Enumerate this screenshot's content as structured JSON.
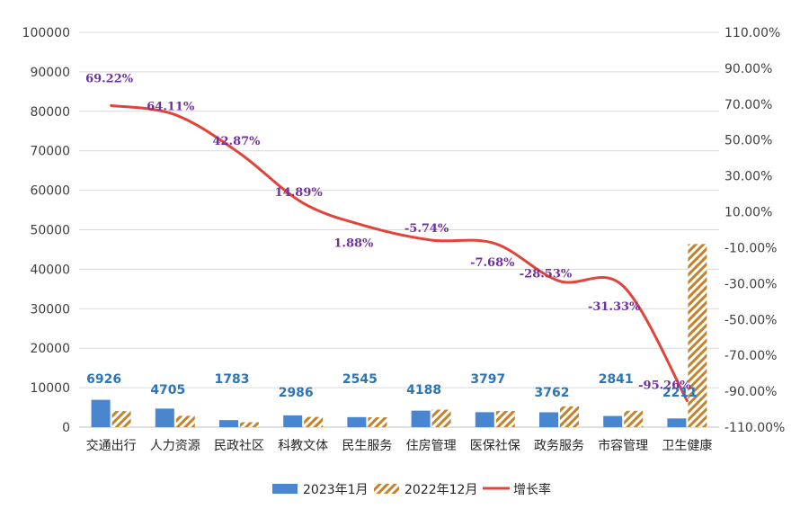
{
  "chart_data": {
    "type": "bar",
    "categories": [
      "交通出行",
      "人力资源",
      "民政社区",
      "科教文体",
      "民生服务",
      "住房管理",
      "医保社保",
      "政务服务",
      "市容管理",
      "卫生健康"
    ],
    "series": [
      {
        "name": "2023年1月",
        "type": "bar",
        "axis": "left",
        "color": "#4A86D0",
        "values": [
          6926,
          4705,
          1783,
          2986,
          2545,
          4188,
          3797,
          3762,
          2841,
          2211
        ],
        "labels": [
          "6926",
          "4705",
          "1783",
          "2986",
          "2545",
          "4188",
          "3797",
          "3762",
          "2841",
          "2211"
        ]
      },
      {
        "name": "2022年12月",
        "type": "bar",
        "axis": "left",
        "color": "#C5822C",
        "pattern": "diagonal-hatch",
        "values": [
          4093,
          2867,
          1248,
          2600,
          2499,
          4443,
          4113,
          5264,
          4144,
          46400
        ]
      },
      {
        "name": "增长率",
        "type": "line",
        "axis": "right",
        "color": "#E0443A",
        "values": [
          69.22,
          64.11,
          42.87,
          14.89,
          1.88,
          -5.74,
          -7.68,
          -28.53,
          -31.33,
          -95.26
        ],
        "labels": [
          "69.22%",
          "64.11%",
          "42.87%",
          "14.89%",
          "1.88%",
          "-5.74%",
          "-7.68%",
          "-28.53%",
          "-31.33%",
          "-95.26%"
        ]
      }
    ],
    "y_left": {
      "min": 0,
      "max": 100000,
      "step": 10000,
      "ticks": [
        "0",
        "10000",
        "20000",
        "30000",
        "40000",
        "50000",
        "60000",
        "70000",
        "80000",
        "90000",
        "100000"
      ]
    },
    "y_right": {
      "min": -110,
      "max": 110,
      "step": 20,
      "ticks": [
        "-110.00%",
        "-90.00%",
        "-70.00%",
        "-50.00%",
        "-30.00%",
        "-10.00%",
        "10.00%",
        "30.00%",
        "50.00%",
        "70.00%",
        "90.00%",
        "110.00%"
      ]
    },
    "grid": true,
    "legend_position": "bottom",
    "legend": [
      "2023年1月",
      "2022年12月",
      "增长率"
    ]
  }
}
